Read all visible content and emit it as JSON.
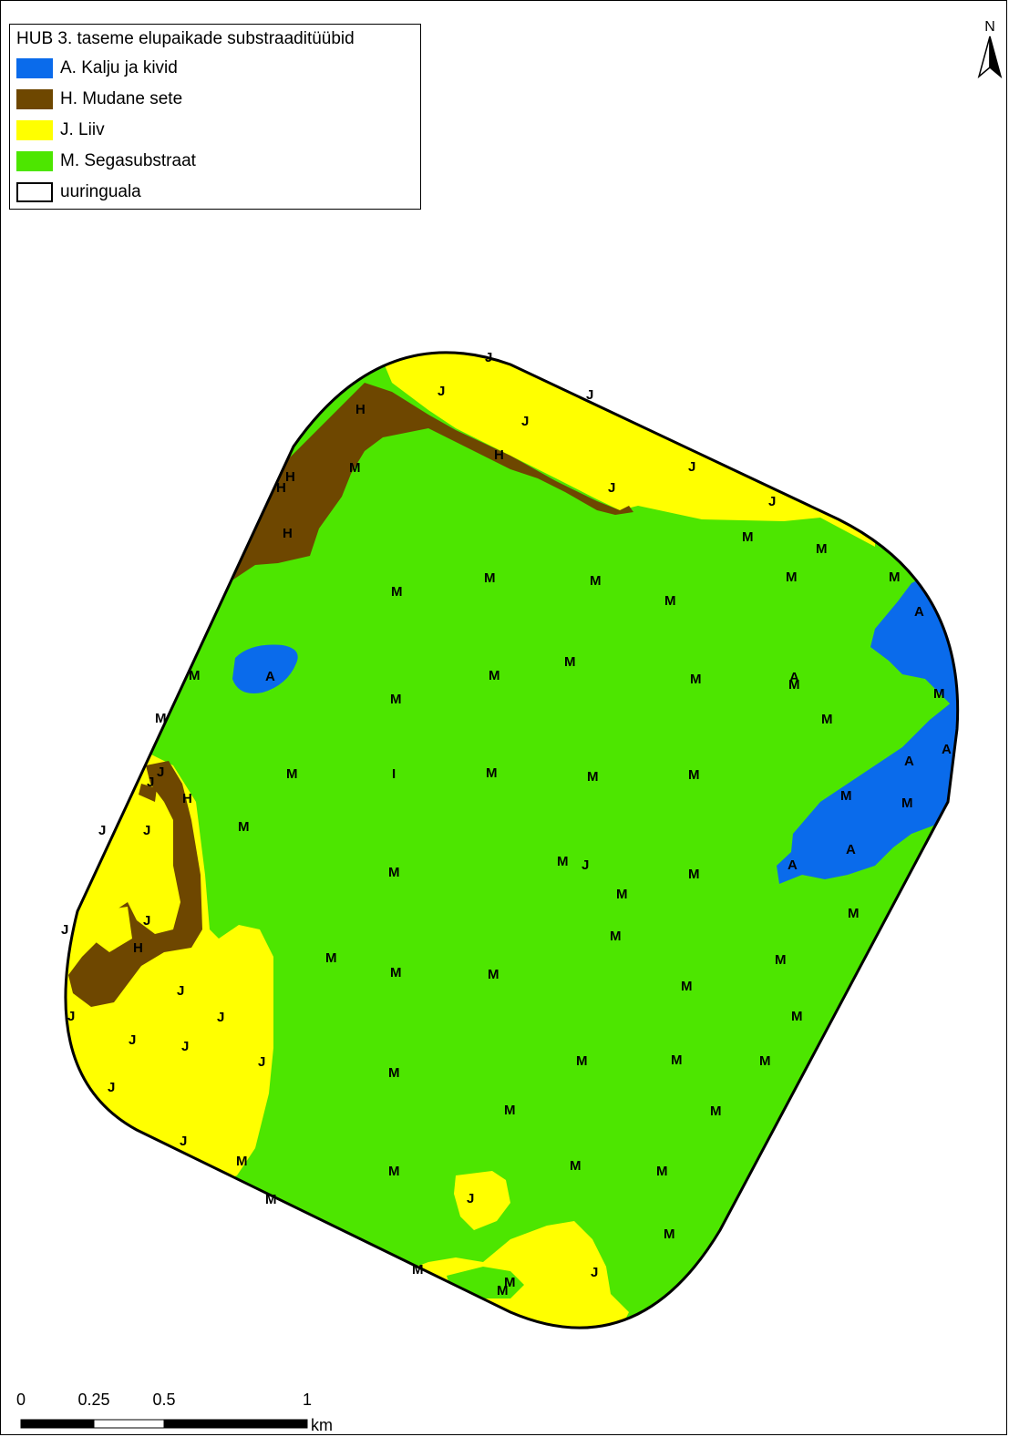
{
  "legend": {
    "title": "HUB 3. taseme elupaikade substraaditüübid",
    "items": [
      {
        "label": "A. Kalju ja kivid",
        "color": "#0A6BEB"
      },
      {
        "label": "H. Mudane sete",
        "color": "#6E4700"
      },
      {
        "label": "J. Liiv",
        "color": "#FFFF00"
      },
      {
        "label": "M. Segasubstraat",
        "color": "#4DE600"
      },
      {
        "label": "uuringuala",
        "color": "#FFFFFF"
      }
    ]
  },
  "north_arrow": {
    "label": "N"
  },
  "scale_bar": {
    "ticks": [
      "0",
      "0.25",
      "0.5",
      "1"
    ],
    "unit": "km"
  },
  "map_labels": {
    "A": "A",
    "H": "H",
    "J": "J",
    "M": "M",
    "I": "I"
  }
}
